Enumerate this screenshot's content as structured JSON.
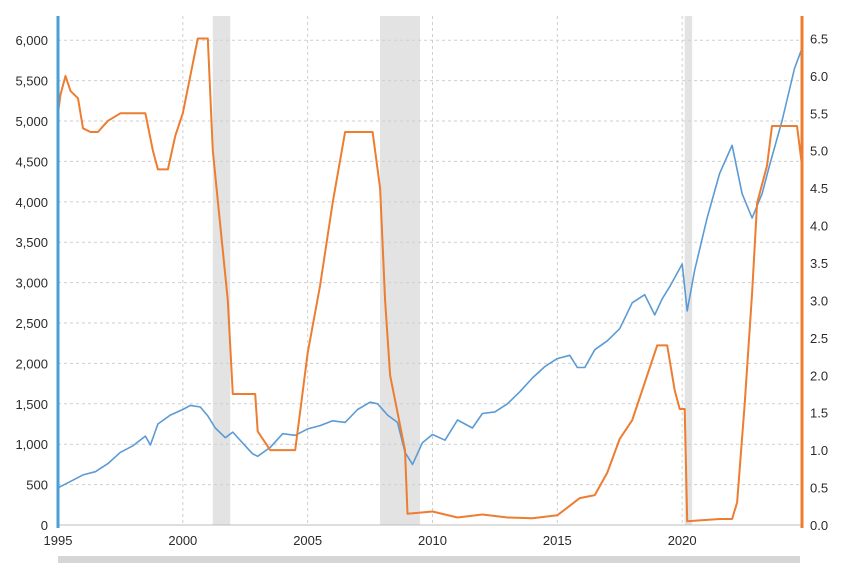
{
  "chart_data": {
    "type": "line",
    "x_range": [
      1995,
      2024.8
    ],
    "left_axis": {
      "range": [
        0,
        6300
      ],
      "ticks": [
        0,
        500,
        1000,
        1500,
        2000,
        2500,
        3000,
        3500,
        4000,
        4500,
        5000,
        5500,
        6000
      ],
      "tick_labels": [
        "0",
        "500",
        "1,000",
        "1,500",
        "2,000",
        "2,500",
        "3,000",
        "3,500",
        "4,000",
        "4,500",
        "5,000",
        "5,500",
        "6,000"
      ],
      "color": "#4a9fd5"
    },
    "right_axis": {
      "range": [
        0,
        6.8
      ],
      "ticks": [
        0,
        0.5,
        1,
        1.5,
        2,
        2.5,
        3,
        3.5,
        4,
        4.5,
        5,
        5.5,
        6,
        6.5
      ],
      "tick_labels": [
        "0.0",
        "0.5",
        "1.0",
        "1.5",
        "2.0",
        "2.5",
        "3.0",
        "3.5",
        "4.0",
        "4.5",
        "5.0",
        "5.5",
        "6.0",
        "6.5"
      ],
      "color": "#ed7d31"
    },
    "x_ticks": [
      1995,
      2000,
      2005,
      2010,
      2015,
      2020
    ],
    "x_tick_labels": [
      "1995",
      "2000",
      "2005",
      "2010",
      "2015",
      "2020"
    ],
    "grid": true,
    "recessions": [
      [
        2001.2,
        2001.9
      ],
      [
        2007.9,
        2009.5
      ],
      [
        2020.1,
        2020.4
      ]
    ],
    "series": [
      {
        "axis": "left",
        "color": "#5b9bd5",
        "points": [
          [
            1995.0,
            460
          ],
          [
            1995.5,
            540
          ],
          [
            1996.0,
            620
          ],
          [
            1996.5,
            660
          ],
          [
            1997.0,
            760
          ],
          [
            1997.5,
            900
          ],
          [
            1998.0,
            980
          ],
          [
            1998.5,
            1100
          ],
          [
            1998.7,
            990
          ],
          [
            1999.0,
            1250
          ],
          [
            1999.5,
            1360
          ],
          [
            2000.0,
            1430
          ],
          [
            2000.3,
            1480
          ],
          [
            2000.7,
            1460
          ],
          [
            2001.0,
            1350
          ],
          [
            2001.3,
            1200
          ],
          [
            2001.7,
            1080
          ],
          [
            2002.0,
            1150
          ],
          [
            2002.5,
            980
          ],
          [
            2002.8,
            880
          ],
          [
            2003.0,
            850
          ],
          [
            2003.5,
            960
          ],
          [
            2004.0,
            1130
          ],
          [
            2004.5,
            1110
          ],
          [
            2005.0,
            1190
          ],
          [
            2005.5,
            1230
          ],
          [
            2006.0,
            1290
          ],
          [
            2006.5,
            1270
          ],
          [
            2007.0,
            1430
          ],
          [
            2007.5,
            1520
          ],
          [
            2007.8,
            1500
          ],
          [
            2008.2,
            1360
          ],
          [
            2008.6,
            1270
          ],
          [
            2008.9,
            900
          ],
          [
            2009.2,
            750
          ],
          [
            2009.6,
            1020
          ],
          [
            2010.0,
            1120
          ],
          [
            2010.5,
            1050
          ],
          [
            2011.0,
            1300
          ],
          [
            2011.6,
            1200
          ],
          [
            2012.0,
            1380
          ],
          [
            2012.5,
            1400
          ],
          [
            2013.0,
            1500
          ],
          [
            2013.5,
            1650
          ],
          [
            2014.0,
            1820
          ],
          [
            2014.5,
            1960
          ],
          [
            2015.0,
            2060
          ],
          [
            2015.5,
            2100
          ],
          [
            2015.8,
            1950
          ],
          [
            2016.1,
            1950
          ],
          [
            2016.5,
            2170
          ],
          [
            2017.0,
            2280
          ],
          [
            2017.5,
            2430
          ],
          [
            2018.0,
            2750
          ],
          [
            2018.5,
            2850
          ],
          [
            2018.9,
            2600
          ],
          [
            2019.2,
            2800
          ],
          [
            2019.5,
            2950
          ],
          [
            2020.0,
            3230
          ],
          [
            2020.2,
            2650
          ],
          [
            2020.5,
            3150
          ],
          [
            2021.0,
            3800
          ],
          [
            2021.5,
            4350
          ],
          [
            2022.0,
            4700
          ],
          [
            2022.4,
            4100
          ],
          [
            2022.8,
            3800
          ],
          [
            2023.2,
            4100
          ],
          [
            2023.5,
            4450
          ],
          [
            2024.0,
            5000
          ],
          [
            2024.5,
            5650
          ],
          [
            2024.8,
            5900
          ]
        ]
      },
      {
        "axis": "right",
        "color": "#ed7d31",
        "points": [
          [
            1995.0,
            5.5
          ],
          [
            1995.1,
            5.75
          ],
          [
            1995.3,
            6.0
          ],
          [
            1995.5,
            5.8
          ],
          [
            1995.8,
            5.7
          ],
          [
            1996.0,
            5.3
          ],
          [
            1996.3,
            5.25
          ],
          [
            1996.6,
            5.25
          ],
          [
            1997.0,
            5.4
          ],
          [
            1997.5,
            5.5
          ],
          [
            1998.0,
            5.5
          ],
          [
            1998.5,
            5.5
          ],
          [
            1998.8,
            5.0
          ],
          [
            1999.0,
            4.75
          ],
          [
            1999.4,
            4.75
          ],
          [
            1999.7,
            5.2
          ],
          [
            2000.0,
            5.5
          ],
          [
            2000.3,
            6.0
          ],
          [
            2000.6,
            6.5
          ],
          [
            2001.0,
            6.5
          ],
          [
            2001.2,
            5.0
          ],
          [
            2001.5,
            4.0
          ],
          [
            2001.8,
            3.0
          ],
          [
            2002.0,
            1.75
          ],
          [
            2002.9,
            1.75
          ],
          [
            2003.0,
            1.25
          ],
          [
            2003.5,
            1.0
          ],
          [
            2004.5,
            1.0
          ],
          [
            2005.0,
            2.3
          ],
          [
            2005.5,
            3.2
          ],
          [
            2006.0,
            4.3
          ],
          [
            2006.5,
            5.25
          ],
          [
            2007.6,
            5.25
          ],
          [
            2007.9,
            4.5
          ],
          [
            2008.1,
            3.0
          ],
          [
            2008.3,
            2.0
          ],
          [
            2008.9,
            1.0
          ],
          [
            2009.0,
            0.15
          ],
          [
            2010.0,
            0.18
          ],
          [
            2011.0,
            0.1
          ],
          [
            2012.0,
            0.14
          ],
          [
            2013.0,
            0.1
          ],
          [
            2014.0,
            0.09
          ],
          [
            2015.0,
            0.13
          ],
          [
            2015.9,
            0.36
          ],
          [
            2016.5,
            0.4
          ],
          [
            2017.0,
            0.7
          ],
          [
            2017.5,
            1.15
          ],
          [
            2018.0,
            1.4
          ],
          [
            2018.5,
            1.9
          ],
          [
            2019.0,
            2.4
          ],
          [
            2019.4,
            2.4
          ],
          [
            2019.7,
            1.8
          ],
          [
            2019.9,
            1.55
          ],
          [
            2020.1,
            1.55
          ],
          [
            2020.2,
            0.05
          ],
          [
            2021.5,
            0.08
          ],
          [
            2022.0,
            0.08
          ],
          [
            2022.2,
            0.3
          ],
          [
            2022.5,
            1.6
          ],
          [
            2022.8,
            3.1
          ],
          [
            2023.0,
            4.3
          ],
          [
            2023.4,
            4.8
          ],
          [
            2023.6,
            5.33
          ],
          [
            2024.6,
            5.33
          ],
          [
            2024.8,
            4.8
          ]
        ]
      }
    ]
  }
}
